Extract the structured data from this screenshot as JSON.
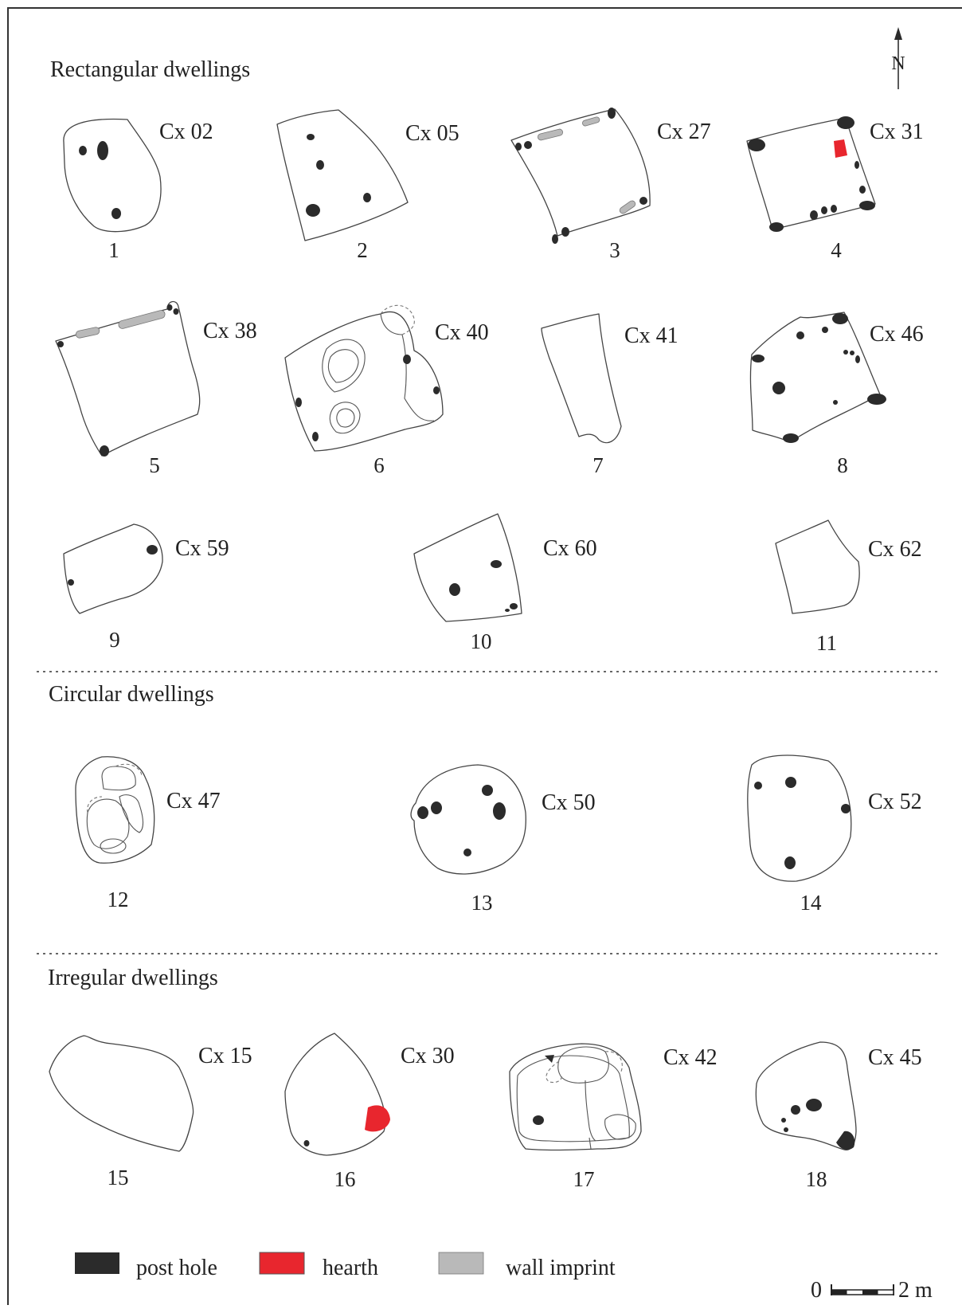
{
  "colors": {
    "post_hole": "#2b2b2b",
    "hearth": "#e8262e",
    "wall_imprint": "#b9b9b9",
    "outline": "#444444",
    "frame": "#333333"
  },
  "north_label": "N",
  "sections": [
    {
      "heading": "Rectangular dwellings",
      "dwellings": [
        {
          "number": "1",
          "code": "Cx 02"
        },
        {
          "number": "2",
          "code": "Cx 05"
        },
        {
          "number": "3",
          "code": "Cx 27"
        },
        {
          "number": "4",
          "code": "Cx 31"
        },
        {
          "number": "5",
          "code": "Cx 38"
        },
        {
          "number": "6",
          "code": "Cx 40"
        },
        {
          "number": "7",
          "code": "Cx 41"
        },
        {
          "number": "8",
          "code": "Cx 46"
        },
        {
          "number": "9",
          "code": "Cx 59"
        },
        {
          "number": "10",
          "code": "Cx 60"
        },
        {
          "number": "11",
          "code": "Cx 62"
        }
      ]
    },
    {
      "heading": "Circular dwellings",
      "dwellings": [
        {
          "number": "12",
          "code": "Cx 47"
        },
        {
          "number": "13",
          "code": "Cx 50"
        },
        {
          "number": "14",
          "code": "Cx 52"
        }
      ]
    },
    {
      "heading": "Irregular dwellings",
      "dwellings": [
        {
          "number": "15",
          "code": "Cx 15"
        },
        {
          "number": "16",
          "code": "Cx 30"
        },
        {
          "number": "17",
          "code": "Cx 42"
        },
        {
          "number": "18",
          "code": "Cx 45"
        }
      ]
    }
  ],
  "legend": [
    {
      "label": "post hole",
      "color": "#2b2b2b"
    },
    {
      "label": "hearth",
      "color": "#e8262e"
    },
    {
      "label": "wall imprint",
      "color": "#b9b9b9"
    }
  ],
  "scale_bar": {
    "start_label": "0",
    "end_label": "2 m"
  }
}
